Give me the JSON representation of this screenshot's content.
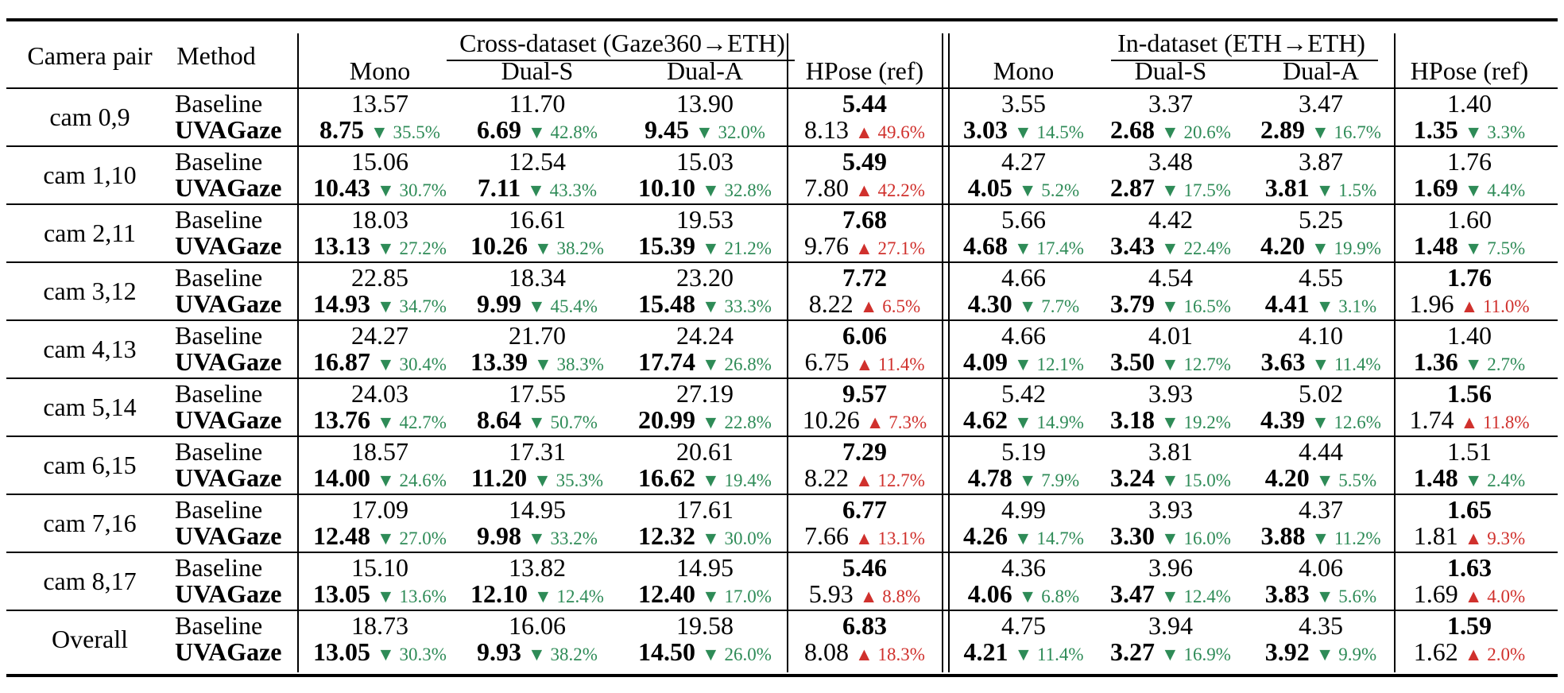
{
  "header": {
    "camera_pair": "Camera pair",
    "method": "Method",
    "cross_group": "Cross-dataset (Gaze360→ETH)",
    "in_group": "In-dataset (ETH→ETH)",
    "cols": [
      "Mono",
      "Dual-S",
      "Dual-A",
      "HPose (ref)"
    ]
  },
  "method_labels": {
    "baseline": "Baseline",
    "uvagaze": "UVAGaze"
  },
  "colors": {
    "improve": "#2e8b57",
    "worsen": "#d0312d"
  },
  "rows": [
    {
      "pair": "cam 0,9",
      "base": [
        "13.57",
        "11.70",
        "13.90",
        "5.44",
        "3.55",
        "3.37",
        "3.47",
        "1.40"
      ],
      "base_bold": [
        false,
        false,
        false,
        true,
        false,
        false,
        false,
        false
      ],
      "uva": [
        "8.75",
        "6.69",
        "9.45",
        "8.13",
        "3.03",
        "2.68",
        "2.89",
        "1.35"
      ],
      "uva_bold": [
        true,
        true,
        true,
        false,
        true,
        true,
        true,
        true
      ],
      "pct": [
        "▼ 35.5%",
        "▼ 42.8%",
        "▼ 32.0%",
        "▲ 49.6%",
        "▼ 14.5%",
        "▼ 20.6%",
        "▼ 16.7%",
        "▼ 3.3%"
      ]
    },
    {
      "pair": "cam 1,10",
      "base": [
        "15.06",
        "12.54",
        "15.03",
        "5.49",
        "4.27",
        "3.48",
        "3.87",
        "1.76"
      ],
      "base_bold": [
        false,
        false,
        false,
        true,
        false,
        false,
        false,
        false
      ],
      "uva": [
        "10.43",
        "7.11",
        "10.10",
        "7.80",
        "4.05",
        "2.87",
        "3.81",
        "1.69"
      ],
      "uva_bold": [
        true,
        true,
        true,
        false,
        true,
        true,
        true,
        true
      ],
      "pct": [
        "▼ 30.7%",
        "▼ 43.3%",
        "▼ 32.8%",
        "▲ 42.2%",
        "▼ 5.2%",
        "▼ 17.5%",
        "▼ 1.5%",
        "▼ 4.4%"
      ]
    },
    {
      "pair": "cam 2,11",
      "base": [
        "18.03",
        "16.61",
        "19.53",
        "7.68",
        "5.66",
        "4.42",
        "5.25",
        "1.60"
      ],
      "base_bold": [
        false,
        false,
        false,
        true,
        false,
        false,
        false,
        false
      ],
      "uva": [
        "13.13",
        "10.26",
        "15.39",
        "9.76",
        "4.68",
        "3.43",
        "4.20",
        "1.48"
      ],
      "uva_bold": [
        true,
        true,
        true,
        false,
        true,
        true,
        true,
        true
      ],
      "pct": [
        "▼ 27.2%",
        "▼ 38.2%",
        "▼ 21.2%",
        "▲ 27.1%",
        "▼ 17.4%",
        "▼ 22.4%",
        "▼ 19.9%",
        "▼ 7.5%"
      ]
    },
    {
      "pair": "cam 3,12",
      "base": [
        "22.85",
        "18.34",
        "23.20",
        "7.72",
        "4.66",
        "4.54",
        "4.55",
        "1.76"
      ],
      "base_bold": [
        false,
        false,
        false,
        true,
        false,
        false,
        false,
        true
      ],
      "uva": [
        "14.93",
        "9.99",
        "15.48",
        "8.22",
        "4.30",
        "3.79",
        "4.41",
        "1.96"
      ],
      "uva_bold": [
        true,
        true,
        true,
        false,
        true,
        true,
        true,
        false
      ],
      "pct": [
        "▼ 34.7%",
        "▼ 45.4%",
        "▼ 33.3%",
        "▲ 6.5%",
        "▼ 7.7%",
        "▼ 16.5%",
        "▼ 3.1%",
        "▲ 11.0%"
      ]
    },
    {
      "pair": "cam 4,13",
      "base": [
        "24.27",
        "21.70",
        "24.24",
        "6.06",
        "4.66",
        "4.01",
        "4.10",
        "1.40"
      ],
      "base_bold": [
        false,
        false,
        false,
        true,
        false,
        false,
        false,
        false
      ],
      "uva": [
        "16.87",
        "13.39",
        "17.74",
        "6.75",
        "4.09",
        "3.50",
        "3.63",
        "1.36"
      ],
      "uva_bold": [
        true,
        true,
        true,
        false,
        true,
        true,
        true,
        true
      ],
      "pct": [
        "▼ 30.4%",
        "▼ 38.3%",
        "▼ 26.8%",
        "▲ 11.4%",
        "▼ 12.1%",
        "▼ 12.7%",
        "▼ 11.4%",
        "▼ 2.7%"
      ]
    },
    {
      "pair": "cam 5,14",
      "base": [
        "24.03",
        "17.55",
        "27.19",
        "9.57",
        "5.42",
        "3.93",
        "5.02",
        "1.56"
      ],
      "base_bold": [
        false,
        false,
        false,
        true,
        false,
        false,
        false,
        true
      ],
      "uva": [
        "13.76",
        "8.64",
        "20.99",
        "10.26",
        "4.62",
        "3.18",
        "4.39",
        "1.74"
      ],
      "uva_bold": [
        true,
        true,
        true,
        false,
        true,
        true,
        true,
        false
      ],
      "pct": [
        "▼ 42.7%",
        "▼ 50.7%",
        "▼ 22.8%",
        "▲ 7.3%",
        "▼ 14.9%",
        "▼ 19.2%",
        "▼ 12.6%",
        "▲ 11.8%"
      ]
    },
    {
      "pair": "cam 6,15",
      "base": [
        "18.57",
        "17.31",
        "20.61",
        "7.29",
        "5.19",
        "3.81",
        "4.44",
        "1.51"
      ],
      "base_bold": [
        false,
        false,
        false,
        true,
        false,
        false,
        false,
        false
      ],
      "uva": [
        "14.00",
        "11.20",
        "16.62",
        "8.22",
        "4.78",
        "3.24",
        "4.20",
        "1.48"
      ],
      "uva_bold": [
        true,
        true,
        true,
        false,
        true,
        true,
        true,
        true
      ],
      "pct": [
        "▼ 24.6%",
        "▼ 35.3%",
        "▼ 19.4%",
        "▲ 12.7%",
        "▼ 7.9%",
        "▼ 15.0%",
        "▼ 5.5%",
        "▼ 2.4%"
      ]
    },
    {
      "pair": "cam 7,16",
      "base": [
        "17.09",
        "14.95",
        "17.61",
        "6.77",
        "4.99",
        "3.93",
        "4.37",
        "1.65"
      ],
      "base_bold": [
        false,
        false,
        false,
        true,
        false,
        false,
        false,
        true
      ],
      "uva": [
        "12.48",
        "9.98",
        "12.32",
        "7.66",
        "4.26",
        "3.30",
        "3.88",
        "1.81"
      ],
      "uva_bold": [
        true,
        true,
        true,
        false,
        true,
        true,
        true,
        false
      ],
      "pct": [
        "▼ 27.0%",
        "▼ 33.2%",
        "▼ 30.0%",
        "▲ 13.1%",
        "▼ 14.7%",
        "▼ 16.0%",
        "▼ 11.2%",
        "▲ 9.3%"
      ]
    },
    {
      "pair": "cam 8,17",
      "base": [
        "15.10",
        "13.82",
        "14.95",
        "5.46",
        "4.36",
        "3.96",
        "4.06",
        "1.63"
      ],
      "base_bold": [
        false,
        false,
        false,
        true,
        false,
        false,
        false,
        true
      ],
      "uva": [
        "13.05",
        "12.10",
        "12.40",
        "5.93",
        "4.06",
        "3.47",
        "3.83",
        "1.69"
      ],
      "uva_bold": [
        true,
        true,
        true,
        false,
        true,
        true,
        true,
        false
      ],
      "pct": [
        "▼ 13.6%",
        "▼ 12.4%",
        "▼ 17.0%",
        "▲ 8.8%",
        "▼ 6.8%",
        "▼ 12.4%",
        "▼ 5.6%",
        "▲ 4.0%"
      ]
    },
    {
      "pair": "Overall",
      "base": [
        "18.73",
        "16.06",
        "19.58",
        "6.83",
        "4.75",
        "3.94",
        "4.35",
        "1.59"
      ],
      "base_bold": [
        false,
        false,
        false,
        true,
        false,
        false,
        false,
        true
      ],
      "uva": [
        "13.05",
        "9.93",
        "14.50",
        "8.08",
        "4.21",
        "3.27",
        "3.92",
        "1.62"
      ],
      "uva_bold": [
        true,
        true,
        true,
        false,
        true,
        true,
        true,
        false
      ],
      "pct": [
        "▼ 30.3%",
        "▼ 38.2%",
        "▼ 26.0%",
        "▲ 18.3%",
        "▼ 11.4%",
        "▼ 16.9%",
        "▼ 9.9%",
        "▲ 2.0%"
      ]
    }
  ]
}
